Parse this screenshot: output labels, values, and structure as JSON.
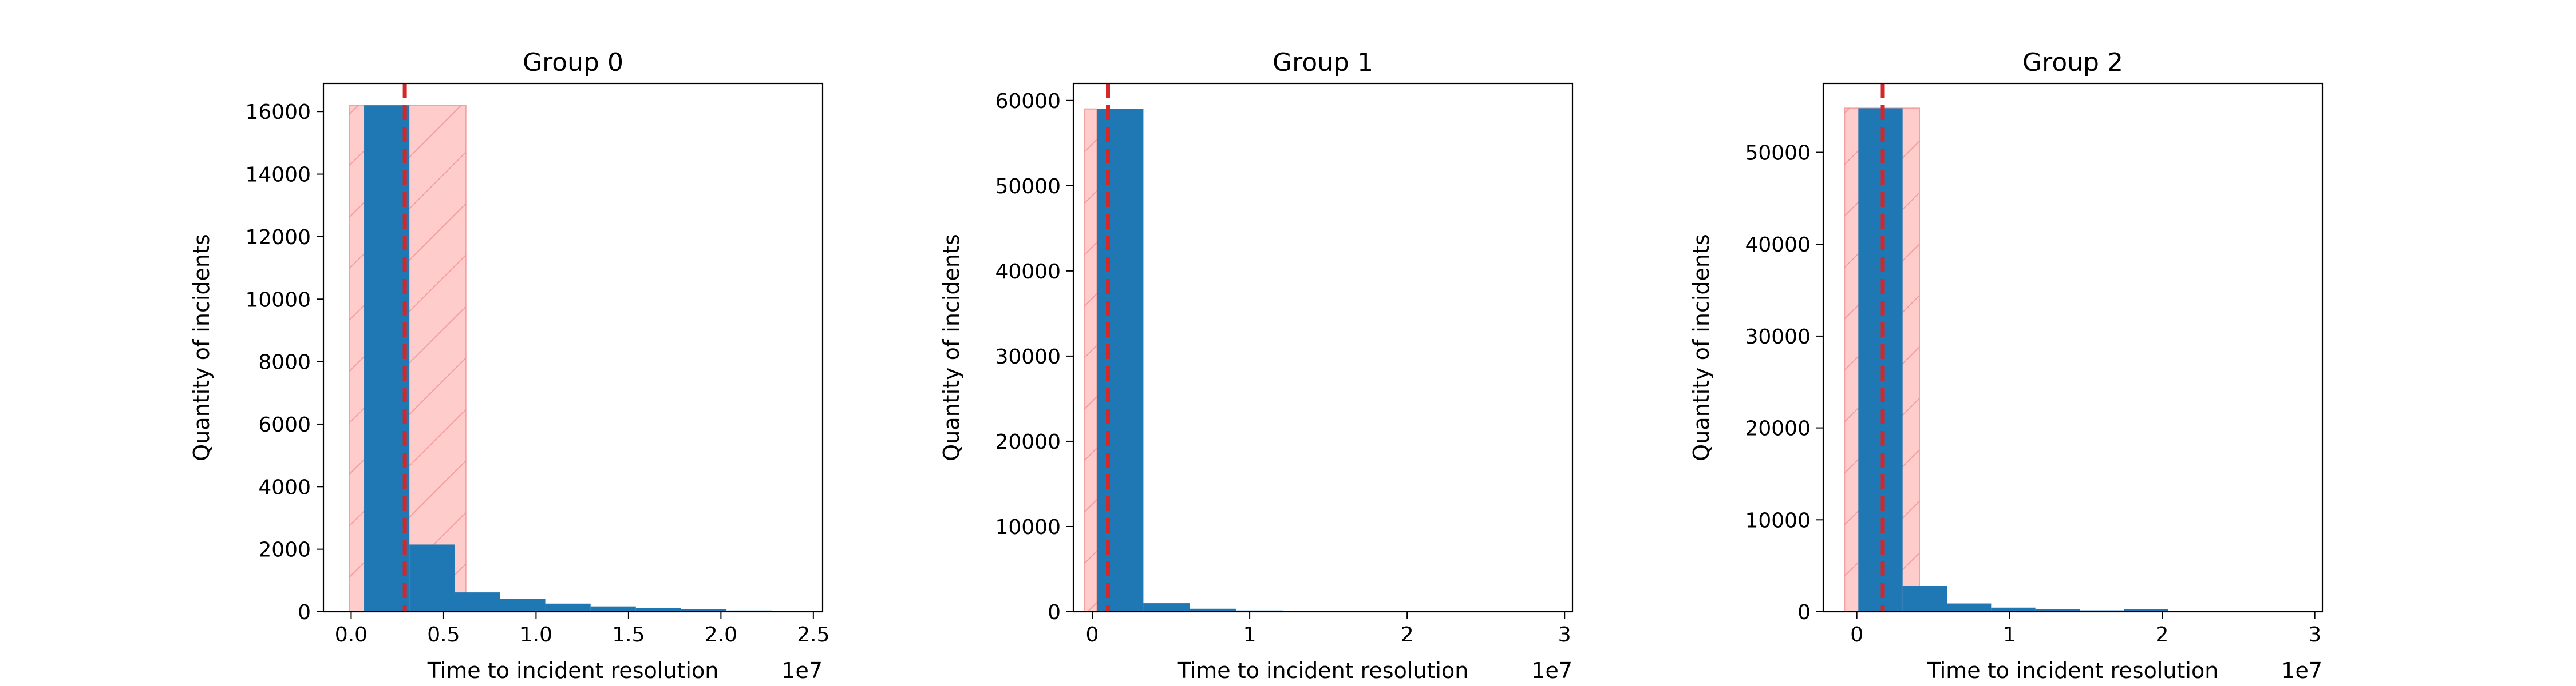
{
  "chart_data": [
    {
      "type": "bar",
      "title": "Group 0",
      "xlabel": "Time to incident resolution",
      "ylabel": "Quantity of incidents",
      "x_offset_label": "1e7",
      "xlim": [
        -0.15,
        2.55
      ],
      "ylim": [
        0,
        16900
      ],
      "xticks": [
        0.0,
        0.5,
        1.0,
        1.5,
        2.0,
        2.5
      ],
      "xtick_labels": [
        "0.0",
        "0.5",
        "1.0",
        "1.5",
        "2.0",
        "2.5"
      ],
      "yticks": [
        0,
        2000,
        4000,
        6000,
        8000,
        10000,
        12000,
        14000,
        16000
      ],
      "ytick_labels": [
        "0",
        "2000",
        "4000",
        "6000",
        "8000",
        "10000",
        "12000",
        "14000",
        "16000"
      ],
      "bins": [
        0.07,
        0.315,
        0.56,
        0.805,
        1.05,
        1.295,
        1.54,
        1.785,
        2.03,
        2.275,
        2.52
      ],
      "counts": [
        16200,
        2150,
        620,
        420,
        260,
        170,
        110,
        80,
        40,
        20
      ],
      "bar_color": "#1f77b4",
      "marker_line": 0.29,
      "marker_color": "#d62728",
      "band": [
        -0.01,
        0.62
      ],
      "band_height": 16200,
      "band_color": "#ffcccc"
    },
    {
      "type": "bar",
      "title": "Group 1",
      "xlabel": "Time to incident resolution",
      "ylabel": "Quantity of incidents",
      "x_offset_label": "1e7",
      "xlim": [
        -0.12,
        3.05
      ],
      "ylim": [
        0,
        62000
      ],
      "xticks": [
        0,
        1,
        2,
        3
      ],
      "xtick_labels": [
        "0",
        "1",
        "2",
        "3"
      ],
      "yticks": [
        0,
        10000,
        20000,
        30000,
        40000,
        50000,
        60000
      ],
      "ytick_labels": [
        "0",
        "10000",
        "20000",
        "30000",
        "40000",
        "50000",
        "60000"
      ],
      "bins": [
        0.03,
        0.325,
        0.62,
        0.915,
        1.21,
        1.505,
        1.8,
        2.095,
        2.39,
        2.685,
        2.98
      ],
      "counts": [
        59000,
        1000,
        350,
        150,
        80,
        50,
        30,
        20,
        10,
        5
      ],
      "bar_color": "#1f77b4",
      "marker_line": 0.1,
      "marker_color": "#d62728",
      "band": [
        -0.05,
        0.03
      ],
      "band_height": 59000,
      "band_color": "#ffcccc"
    },
    {
      "type": "bar",
      "title": "Group 2",
      "xlabel": "Time to incident resolution",
      "ylabel": "Quantity of incidents",
      "x_offset_label": "1e7",
      "xlim": [
        -0.22,
        3.05
      ],
      "ylim": [
        0,
        57500
      ],
      "xticks": [
        0,
        1,
        2,
        3
      ],
      "xtick_labels": [
        "0",
        "1",
        "2",
        "3"
      ],
      "yticks": [
        0,
        10000,
        20000,
        30000,
        40000,
        50000
      ],
      "ytick_labels": [
        "0",
        "10000",
        "20000",
        "30000",
        "40000",
        "50000"
      ],
      "bins": [
        0.01,
        0.3,
        0.59,
        0.88,
        1.17,
        1.46,
        1.75,
        2.04,
        2.33,
        2.62,
        2.91
      ],
      "counts": [
        54800,
        2800,
        900,
        450,
        250,
        150,
        280,
        80,
        40,
        20
      ],
      "bar_color": "#1f77b4",
      "marker_line": 0.17,
      "marker_color": "#d62728",
      "band": [
        -0.08,
        0.41
      ],
      "band_height": 54800,
      "band_color": "#ffcccc"
    }
  ]
}
